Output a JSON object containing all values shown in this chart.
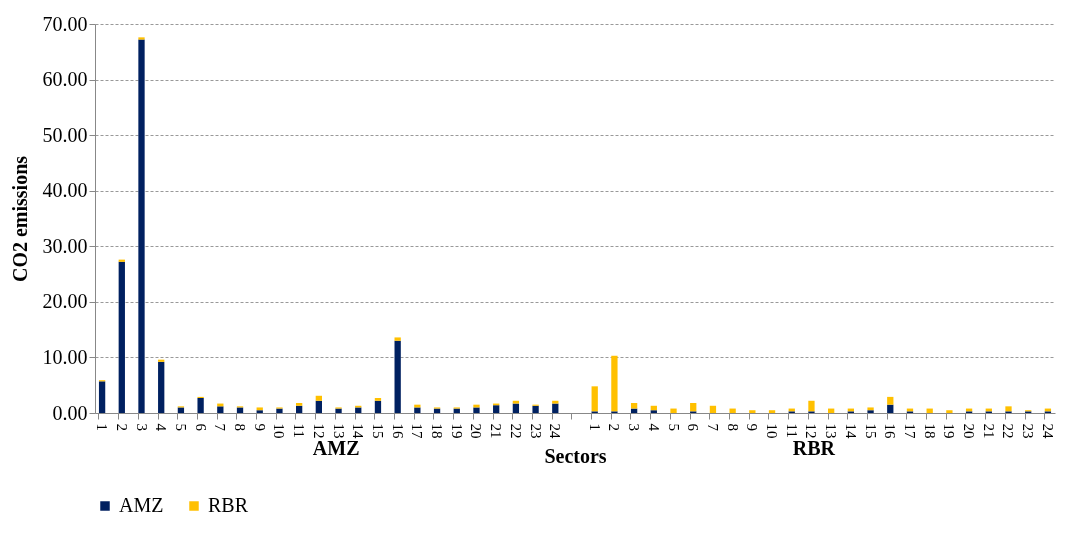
{
  "chart_data": {
    "type": "bar",
    "stacked": true,
    "xlabel": "Sectors",
    "ylabel": "CO2 emissions",
    "categories": [
      "1",
      "2",
      "3",
      "4",
      "5",
      "6",
      "7",
      "8",
      "9",
      "10",
      "11",
      "12",
      "13",
      "14",
      "15",
      "16",
      "17",
      "18",
      "19",
      "20",
      "21",
      "22",
      "23",
      "24",
      null,
      "1",
      "2",
      "3",
      "4",
      "5",
      "6",
      "7",
      "8",
      "9",
      "10",
      "11",
      "12",
      "13",
      "14",
      "15",
      "16",
      "17",
      "18",
      "19",
      "20",
      "21",
      "22",
      "23",
      "24"
    ],
    "series": [
      {
        "name": "AMZ",
        "color": "#002060",
        "values": [
          5.7,
          27.2,
          67.2,
          9.2,
          1.0,
          2.7,
          1.2,
          1.0,
          0.5,
          0.8,
          1.3,
          2.2,
          0.8,
          1.0,
          2.2,
          13.0,
          1.0,
          0.8,
          0.8,
          1.0,
          1.4,
          1.7,
          1.3,
          1.7,
          null,
          0.3,
          0.3,
          0.8,
          0.5,
          0,
          0.3,
          0,
          0,
          0,
          0,
          0.3,
          0.3,
          0,
          0.3,
          0.5,
          1.5,
          0.3,
          0,
          0,
          0.3,
          0.3,
          0.3,
          0.3,
          0.3
        ]
      },
      {
        "name": "RBR",
        "color": "#ffc000",
        "values": [
          0.2,
          0.4,
          0.4,
          0.4,
          0.2,
          0.2,
          0.5,
          0.2,
          0.5,
          0.2,
          0.5,
          0.9,
          0.2,
          0.3,
          0.5,
          0.6,
          0.5,
          0.2,
          0.2,
          0.5,
          0.3,
          0.5,
          0.2,
          0.5,
          null,
          4.5,
          10.0,
          1.0,
          0.8,
          0.8,
          1.5,
          1.3,
          0.8,
          0.5,
          0.5,
          0.5,
          1.9,
          0.8,
          0.5,
          0.5,
          1.4,
          0.5,
          0.8,
          0.5,
          0.5,
          0.5,
          0.9,
          0.2,
          0.5
        ]
      }
    ],
    "ylim": [
      0,
      70
    ],
    "yticks": [
      {
        "value": 0,
        "label": "0.00"
      },
      {
        "value": 10,
        "label": "10.00"
      },
      {
        "value": 20,
        "label": "20.00"
      },
      {
        "value": 30,
        "label": "30.00"
      },
      {
        "value": 40,
        "label": "40.00"
      },
      {
        "value": 50,
        "label": "50.00"
      },
      {
        "value": 60,
        "label": "60.00"
      },
      {
        "value": 70,
        "label": "70.00"
      }
    ],
    "grid": "y",
    "legend": "bottom",
    "annotations": [
      "AMZ",
      "RBR"
    ]
  }
}
